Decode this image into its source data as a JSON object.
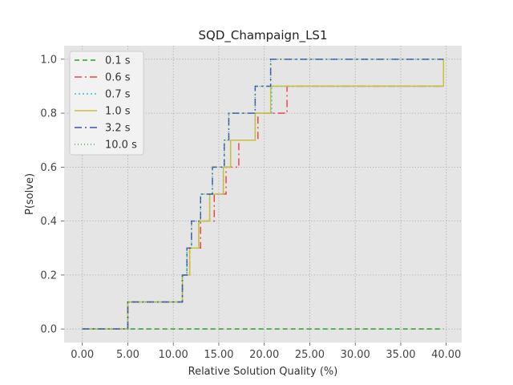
{
  "chart_data": {
    "type": "line",
    "style": "step-post",
    "title": "SQD_Champaign_LS1",
    "xlabel": "Relative Solution Quality (%)",
    "ylabel": "P(solve)",
    "xlim": [
      -2.0,
      41.7
    ],
    "ylim": [
      -0.05,
      1.05
    ],
    "xticks": [
      0,
      5,
      10,
      15,
      20,
      25,
      30,
      35,
      40
    ],
    "xtick_labels": [
      "0.00",
      "5.00",
      "10.00",
      "15.00",
      "20.00",
      "25.00",
      "30.00",
      "35.00",
      "40.00"
    ],
    "yticks": [
      0.0,
      0.2,
      0.4,
      0.6,
      0.8,
      1.0
    ],
    "ytick_labels": [
      "0.0",
      "0.2",
      "0.4",
      "0.6",
      "0.8",
      "1.0"
    ],
    "grid": true,
    "legend_position": "upper-left",
    "series": [
      {
        "name": "0.1 s",
        "color": "#2ca02c",
        "dash": "6,4",
        "x": [
          0.0,
          39.7
        ],
        "y": [
          0.0,
          0.0
        ]
      },
      {
        "name": "0.6 s",
        "color": "#e8474f",
        "dash": "9,4,2,4",
        "x": [
          0.0,
          5.0,
          11.0,
          11.8,
          13.0,
          14.5,
          15.8,
          17.2,
          19.3,
          22.5,
          39.7
        ],
        "y": [
          0.0,
          0.1,
          0.2,
          0.3,
          0.4,
          0.5,
          0.6,
          0.7,
          0.8,
          0.9,
          0.9
        ]
      },
      {
        "name": "0.7 s",
        "color": "#2ec4d6",
        "dash": "2,3",
        "x": [
          0.0,
          5.0,
          11.0,
          11.5,
          12.8,
          14.0,
          15.5,
          16.3,
          19.0,
          20.8,
          39.7
        ],
        "y": [
          0.0,
          0.1,
          0.2,
          0.3,
          0.4,
          0.5,
          0.6,
          0.7,
          0.8,
          0.9,
          0.9
        ]
      },
      {
        "name": "1.0 s",
        "color": "#c9c03a",
        "dash": "",
        "x": [
          0.0,
          5.0,
          11.0,
          11.8,
          12.8,
          14.0,
          15.5,
          16.3,
          19.0,
          20.7,
          39.7
        ],
        "y": [
          0.0,
          0.1,
          0.2,
          0.3,
          0.4,
          0.5,
          0.6,
          0.7,
          0.8,
          0.9,
          1.0
        ]
      },
      {
        "name": "3.2 s",
        "color": "#3b4cc0",
        "dash": "9,4,2,4",
        "x": [
          0.0,
          5.0,
          11.0,
          11.5,
          12.0,
          13.0,
          14.3,
          15.6,
          16.1,
          19.0,
          20.7,
          39.7
        ],
        "y": [
          0.0,
          0.1,
          0.2,
          0.3,
          0.4,
          0.5,
          0.6,
          0.7,
          0.8,
          0.9,
          1.0,
          1.0
        ]
      },
      {
        "name": "10.0 s",
        "color": "#4caf50",
        "dash": "1,3",
        "x": [
          0.0,
          5.0,
          11.0,
          11.5,
          12.0,
          13.0,
          14.3,
          15.6,
          16.1,
          19.0,
          20.7,
          39.7
        ],
        "y": [
          0.0,
          0.1,
          0.2,
          0.3,
          0.4,
          0.5,
          0.6,
          0.7,
          0.8,
          0.9,
          1.0,
          1.0
        ]
      }
    ]
  }
}
